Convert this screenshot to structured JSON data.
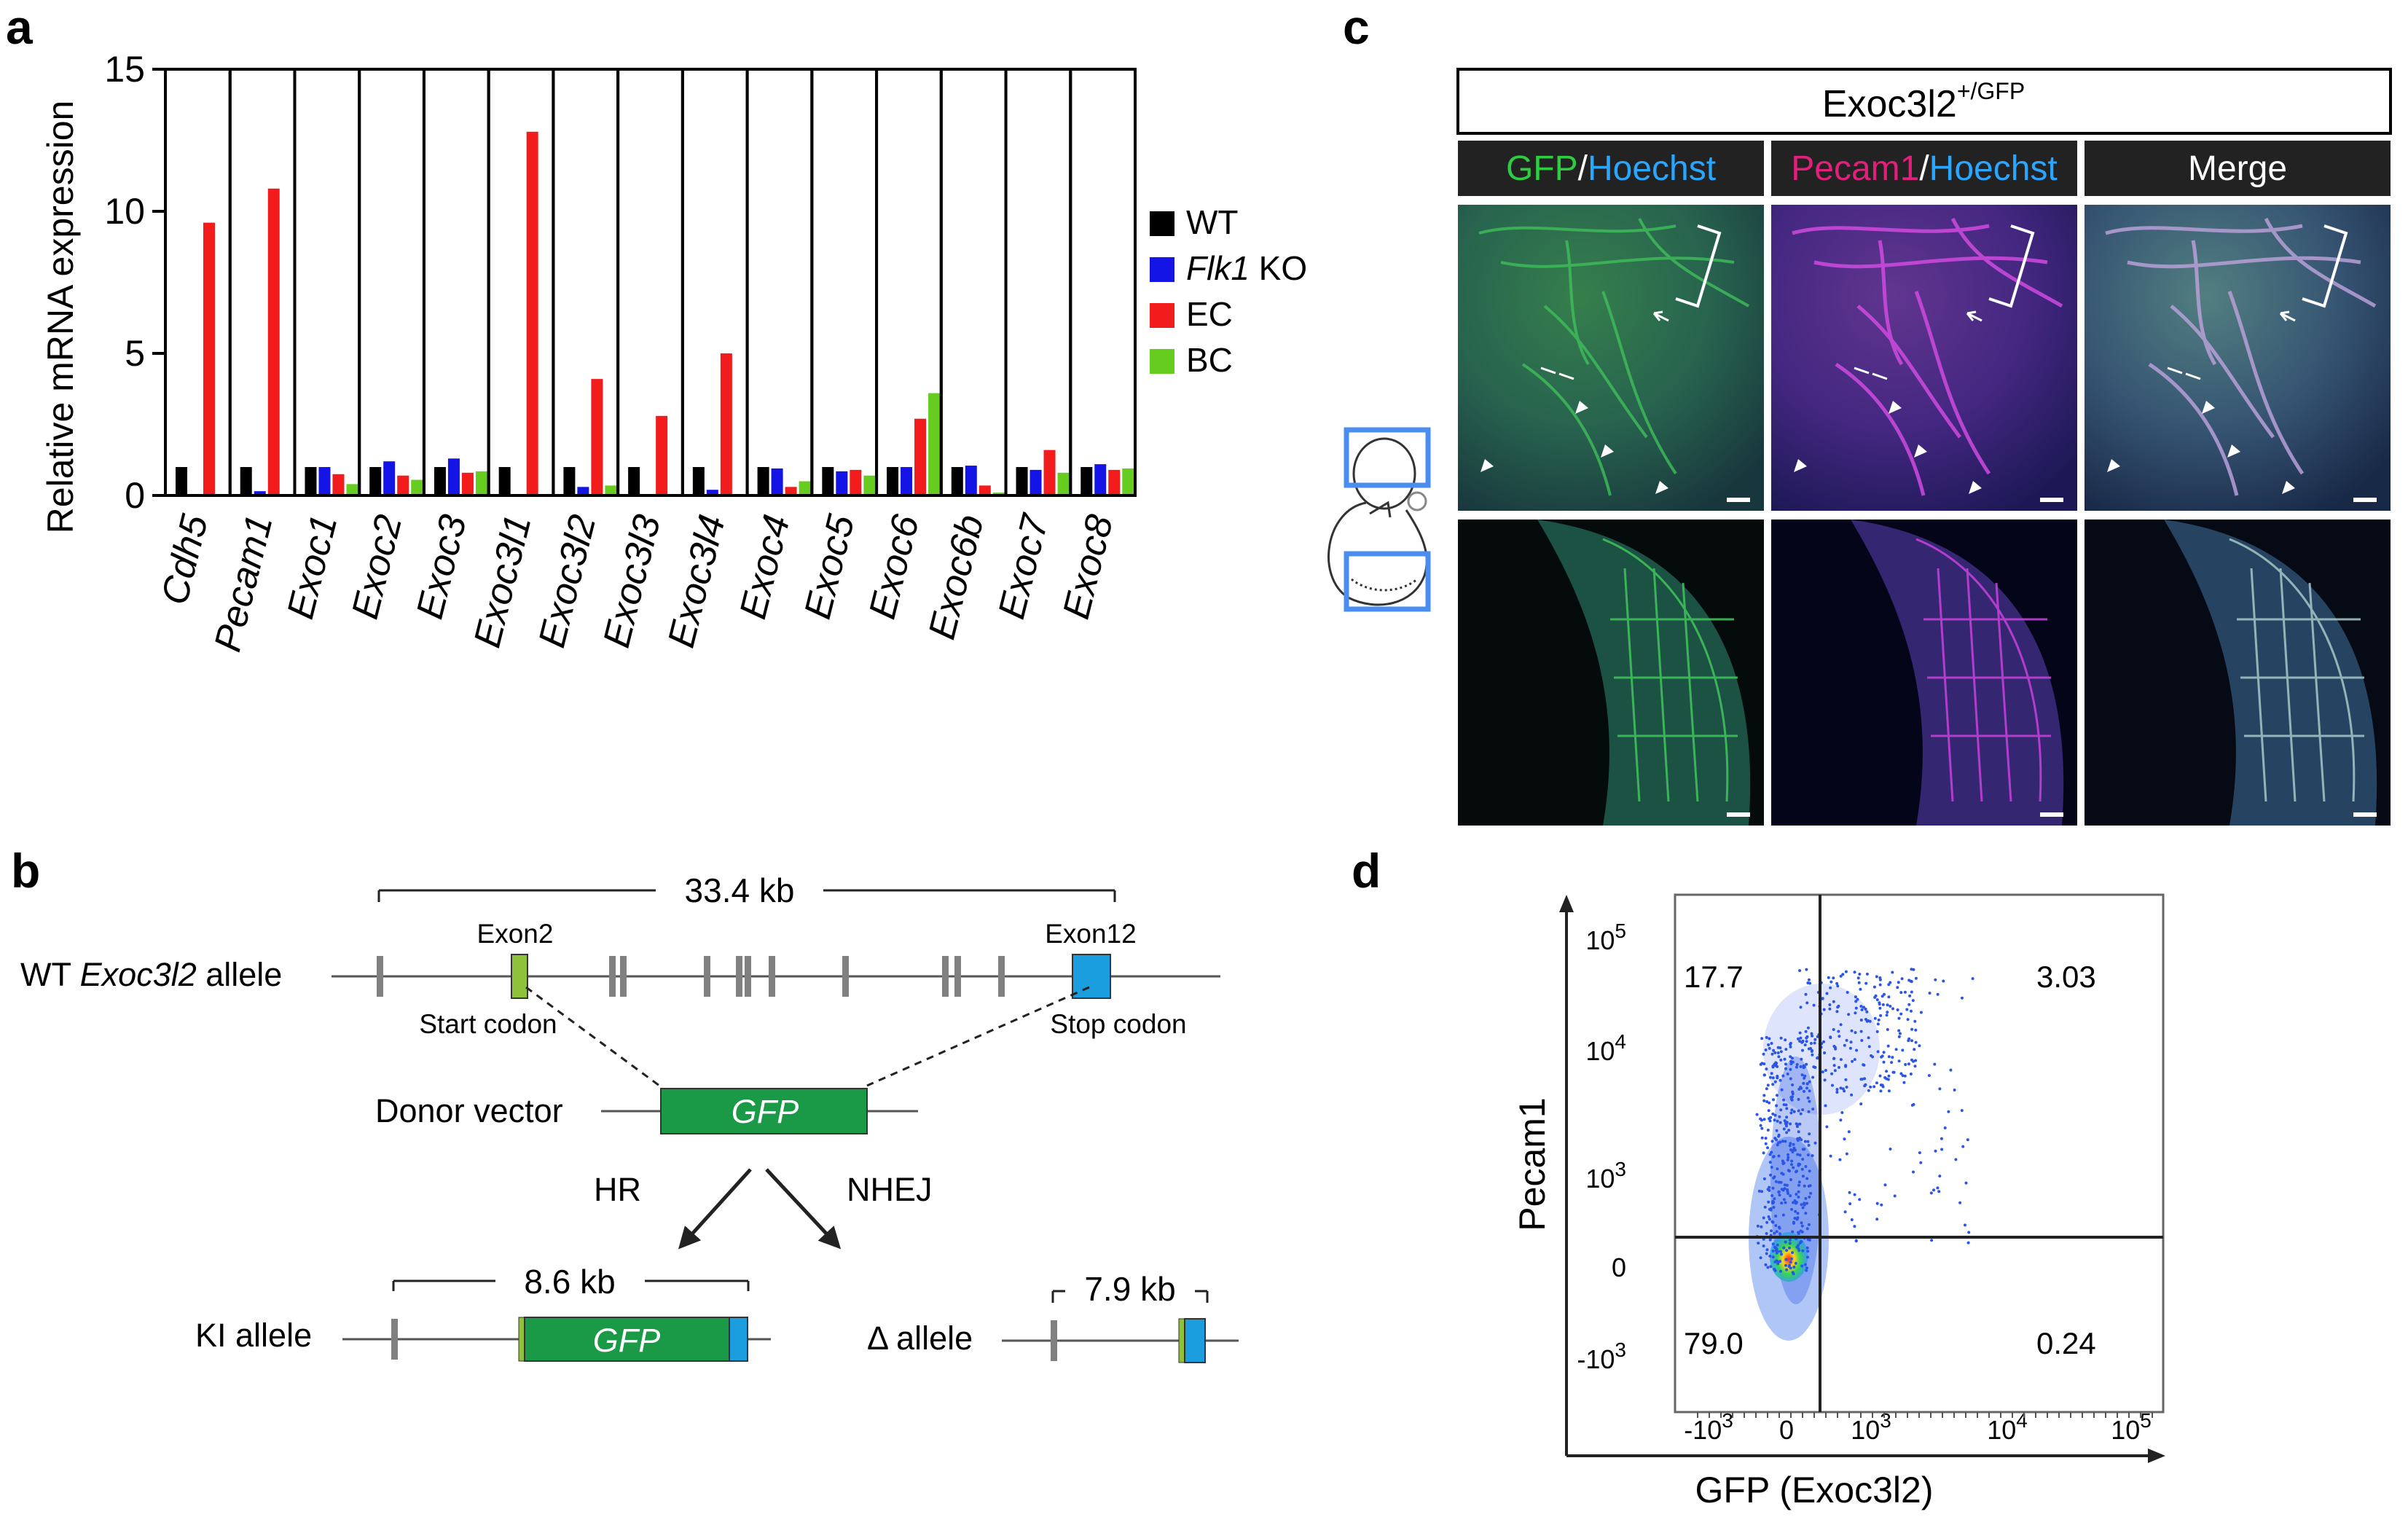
{
  "panel_labels": {
    "a": "a",
    "b": "b",
    "c": "c",
    "d": "d"
  },
  "colors": {
    "wt": "#000000",
    "flk1": "#1414e6",
    "ec": "#f21c1c",
    "bc": "#66cc1f",
    "gfp": "#1e9e4b",
    "pecam": "#e0207a",
    "hoechst": "#1e8fe0",
    "exon_green": "#8fc13a",
    "exon_blue": "#1a9ee0",
    "gfp_box": "#1a9a47"
  },
  "chart_data": [
    {
      "type": "bar",
      "title": "",
      "ylabel": "Relative mRNA expression",
      "xlabel": "",
      "ylim": [
        0,
        15
      ],
      "yticks": [
        "0",
        "5",
        "10",
        "15"
      ],
      "categories": [
        "Cdh5",
        "Pecam1",
        "Exoc1",
        "Exoc2",
        "Exoc3",
        "Exoc3l1",
        "Exoc3l2",
        "Exoc3l3",
        "Exoc3l4",
        "Exoc4",
        "Exoc5",
        "Exoc6",
        "Exoc6b",
        "Exoc7",
        "Exoc8"
      ],
      "legend": {
        "position": "right",
        "labels": [
          {
            "pre": "",
            "it": "",
            "post": "WT"
          },
          {
            "pre": "",
            "it": "Flk1",
            "post": " KO"
          },
          {
            "pre": "",
            "it": "",
            "post": "EC"
          },
          {
            "pre": "",
            "it": "",
            "post": "BC"
          }
        ]
      },
      "series": [
        {
          "name": "WT",
          "values": [
            1.0,
            1.0,
            1.0,
            1.0,
            1.0,
            1.0,
            1.0,
            1.0,
            1.0,
            1.0,
            1.0,
            1.0,
            1.0,
            1.0,
            1.0
          ]
        },
        {
          "name": "Flk1 KO",
          "values": [
            0.05,
            0.15,
            1.0,
            1.2,
            1.3,
            0.05,
            0.3,
            0.05,
            0.2,
            0.95,
            0.85,
            1.0,
            1.05,
            0.9,
            1.1
          ]
        },
        {
          "name": "EC",
          "values": [
            9.6,
            10.8,
            0.75,
            0.7,
            0.8,
            12.8,
            4.1,
            2.8,
            5.0,
            0.3,
            0.9,
            2.7,
            0.35,
            1.6,
            0.9
          ]
        },
        {
          "name": "BC",
          "values": [
            0.05,
            0.05,
            0.4,
            0.55,
            0.85,
            0.05,
            0.35,
            0.05,
            0.05,
            0.5,
            0.7,
            3.6,
            0.1,
            0.8,
            0.95
          ]
        }
      ]
    },
    {
      "type": "scatter",
      "title": "",
      "xlabel": "GFP (Exoc3l2)",
      "ylabel": "Pecam1",
      "x_scale": "biexponential",
      "y_scale": "biexponential",
      "x_ticks": [
        {
          "b": "-10",
          "e": "3"
        },
        {
          "b": "0",
          "e": ""
        },
        {
          "b": "10",
          "e": "3"
        },
        {
          "b": "10",
          "e": "4"
        },
        {
          "b": "10",
          "e": "5"
        }
      ],
      "y_ticks": [
        {
          "b": "10",
          "e": "5"
        },
        {
          "b": "10",
          "e": "4"
        },
        {
          "b": "10",
          "e": "3"
        },
        {
          "b": "0",
          "e": ""
        },
        {
          "b": "-10",
          "e": "3"
        }
      ],
      "quadrants": {
        "upper_left": "17.7",
        "upper_right": "3.03",
        "lower_left": "79.0",
        "lower_right": "0.24"
      }
    }
  ],
  "panel_b": {
    "scale_wt": "33.4 kb",
    "exon2": "Exon2",
    "exon12": "Exon12",
    "wt_allele": {
      "pre": "WT ",
      "it": "Exoc3l2",
      "post": " allele"
    },
    "start_codon": "Start codon",
    "stop_codon": "Stop codon",
    "donor_vector": "Donor vector",
    "gfp": "GFP",
    "hr": "HR",
    "nhej": "NHEJ",
    "scale_ki": "8.6 kb",
    "ki_allele": "KI allele",
    "scale_delta": "7.9 kb",
    "delta_allele": "Δ allele"
  },
  "panel_c": {
    "header": {
      "main": "Exoc3l2",
      "sup": "+/GFP"
    },
    "columns": [
      {
        "a": "GFP",
        "sep": "/",
        "b": "Hoechst"
      },
      {
        "a": "Pecam1",
        "sep": "/",
        "b": "Hoechst"
      },
      {
        "a": "",
        "sep": "",
        "b": "Merge"
      }
    ]
  }
}
